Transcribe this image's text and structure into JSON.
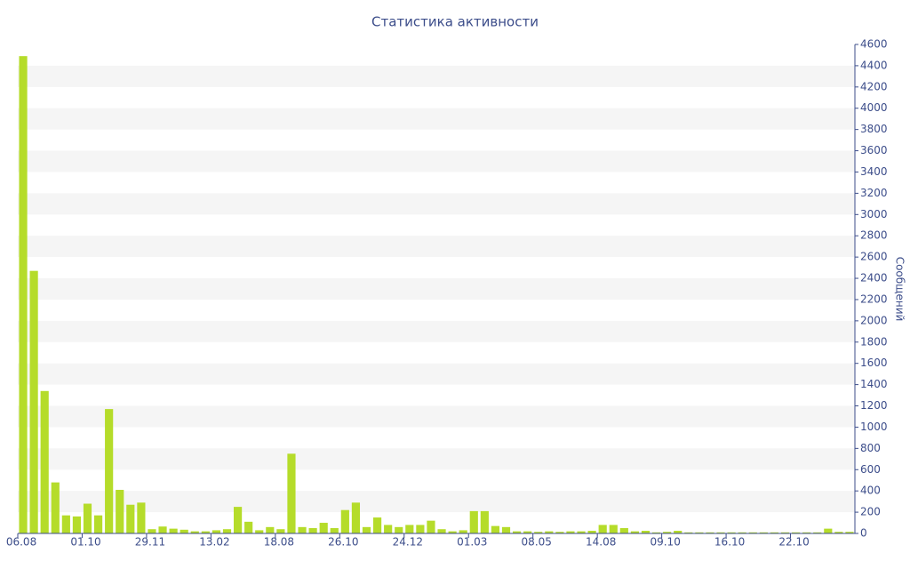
{
  "chart_data": {
    "type": "bar",
    "title": "Статистика активности",
    "y_label": "Сообщений",
    "categories": [
      "06.08",
      null,
      null,
      null,
      null,
      null,
      "01.10",
      null,
      null,
      null,
      null,
      null,
      "29.11",
      null,
      null,
      null,
      null,
      null,
      "13.02",
      null,
      null,
      null,
      null,
      null,
      "18.08",
      null,
      null,
      null,
      null,
      null,
      "26.10",
      null,
      null,
      null,
      null,
      null,
      "24.12",
      null,
      null,
      null,
      null,
      null,
      "01.03",
      null,
      null,
      null,
      null,
      null,
      "08.05",
      null,
      null,
      null,
      null,
      null,
      "14.08",
      null,
      null,
      null,
      null,
      null,
      "09.10",
      null,
      null,
      null,
      null,
      null,
      "16.10",
      null,
      null,
      null,
      null,
      null,
      "22.10",
      null,
      null,
      null,
      null,
      null
    ],
    "values": [
      4490,
      2470,
      1340,
      480,
      170,
      160,
      280,
      170,
      1170,
      410,
      270,
      290,
      40,
      65,
      45,
      35,
      20,
      20,
      30,
      40,
      250,
      110,
      30,
      60,
      40,
      750,
      60,
      50,
      100,
      50,
      220,
      290,
      60,
      150,
      80,
      60,
      80,
      80,
      120,
      40,
      20,
      30,
      210,
      210,
      70,
      60,
      20,
      20,
      15,
      20,
      15,
      20,
      20,
      25,
      80,
      80,
      50,
      20,
      25,
      10,
      15,
      25,
      10,
      10,
      10,
      10,
      10,
      10,
      10,
      10,
      10,
      10,
      10,
      10,
      10,
      45,
      15,
      15
    ],
    "color": "#b5dc2a",
    "ylim": [
      0,
      4600
    ],
    "yticks": [
      0,
      200,
      400,
      600,
      800,
      1000,
      1200,
      1400,
      1600,
      1800,
      2000,
      2200,
      2400,
      2600,
      2800,
      3000,
      3200,
      3400,
      3600,
      3800,
      4000,
      4200,
      4400,
      4600
    ],
    "y_axis_side": "right",
    "grid": "bands"
  }
}
